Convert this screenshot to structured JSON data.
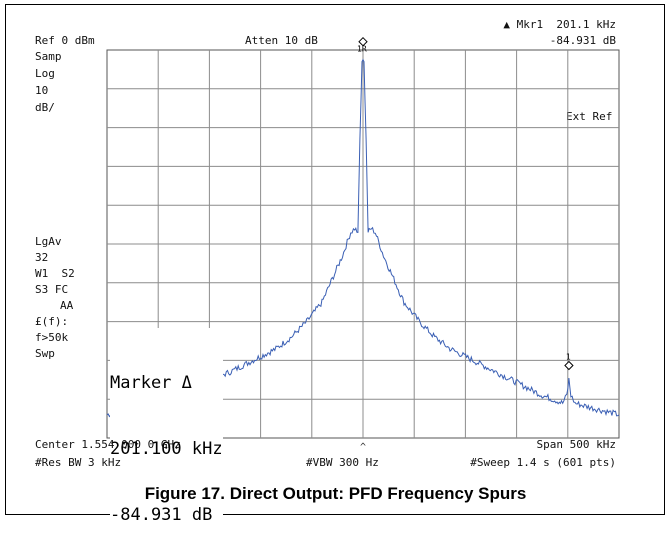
{
  "header": {
    "ref_level": "Ref 0 dBm",
    "atten": "Atten 10 dB",
    "marker_label": "▲ Mkr1  201.1 kHz",
    "marker_value": "-84.931 dB"
  },
  "left_annotations": {
    "samp": "Samp",
    "log": "Log",
    "scale_value": "10",
    "scale_unit": "dB/",
    "lgav": "LgAv",
    "avg_count": "32",
    "w1s2": "W1  S2",
    "s3fc": "S3 FC",
    "aa": "AA",
    "ff": "£(f):",
    "f50k": "f>50k",
    "swp": "Swp"
  },
  "ext_ref": "Ext Ref",
  "marker_box": {
    "title": "Marker Δ",
    "freq": "201.100 kHz",
    "level": "-84.931 dB"
  },
  "footer": {
    "center": "Center 1.554 000 0 GHz",
    "span": "Span 500 kHz",
    "res_bw": "#Res BW 3 kHz",
    "vbw": "#VBW 300 Hz",
    "sweep": "#Sweep 1.4 s (601 pts)"
  },
  "caption": "Figure 17. Direct Output: PFD Frequency Spurs",
  "colors": {
    "trace": "#3a5fb4",
    "grid": "#8c8c8c"
  },
  "chart_data": {
    "type": "line",
    "title": "Figure 17. Direct Output: PFD Frequency Spurs",
    "xlabel": "",
    "ylabel": "",
    "x_unit": "kHz offset from center",
    "xlim": [
      -250,
      250
    ],
    "ylim": [
      -100,
      0
    ],
    "grid": true,
    "legend": "none",
    "series": [
      {
        "name": "",
        "x": [
          -250,
          -235,
          -220,
          -205,
          -190,
          -175,
          -160,
          -145,
          -130,
          -115,
          -100,
          -85,
          -70,
          -55,
          -40,
          -30,
          -20,
          -12,
          -8,
          -5,
          -3,
          -1,
          0,
          1,
          3,
          5,
          8,
          12,
          20,
          30,
          40,
          55,
          70,
          85,
          100,
          115,
          130,
          145,
          160,
          175,
          185,
          195,
          199,
          201.1,
          203,
          207,
          220,
          235,
          250
        ],
        "y": [
          -94,
          -93,
          -92,
          -91,
          -89,
          -87.5,
          -86,
          -84.5,
          -83,
          -81,
          -79,
          -77,
          -74,
          -70,
          -65,
          -59,
          -53,
          -47,
          -46,
          -47,
          -23,
          -3,
          -2.5,
          -3,
          -23,
          -47,
          -46,
          -47,
          -53,
          -59,
          -65,
          -70,
          -74,
          -77,
          -79,
          -81,
          -83,
          -85,
          -87,
          -89,
          -90,
          -91,
          -89,
          -84.931,
          -89,
          -91,
          -92,
          -93,
          -94
        ]
      }
    ],
    "markers": [
      {
        "label": "1R",
        "x": 0,
        "y": -2.5
      },
      {
        "label": "1",
        "x": 201.1,
        "y": -84.931
      }
    ]
  }
}
